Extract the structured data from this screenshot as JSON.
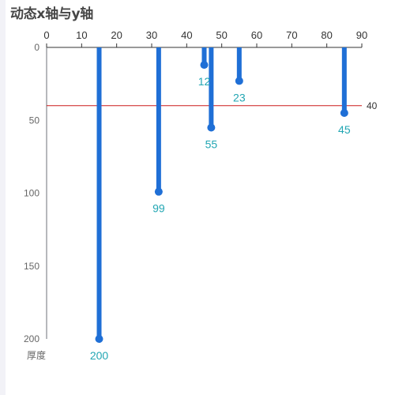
{
  "chart_data": {
    "type": "bar",
    "title": "动态x轴与y轴",
    "ylabel": "厚度",
    "x_axis": {
      "position": "top",
      "range": [
        0,
        90
      ],
      "ticks": [
        0,
        10,
        20,
        30,
        40,
        50,
        60,
        70,
        80,
        90
      ]
    },
    "y_axis": {
      "inverse": true,
      "range": [
        0,
        200
      ],
      "ticks": [
        0,
        50,
        100,
        150,
        200
      ]
    },
    "series": [
      {
        "color": "#1f6fd6",
        "points": [
          {
            "x": 15,
            "y": 200
          },
          {
            "x": 32,
            "y": 99
          },
          {
            "x": 45,
            "y": 12
          },
          {
            "x": 47,
            "y": 55
          },
          {
            "x": 55,
            "y": 23
          },
          {
            "x": 85,
            "y": 45
          }
        ]
      }
    ],
    "mark_line": {
      "value": 40,
      "label": "40",
      "color": "#cc1b1b"
    },
    "grid": false,
    "label_color": "#22a6b3"
  }
}
